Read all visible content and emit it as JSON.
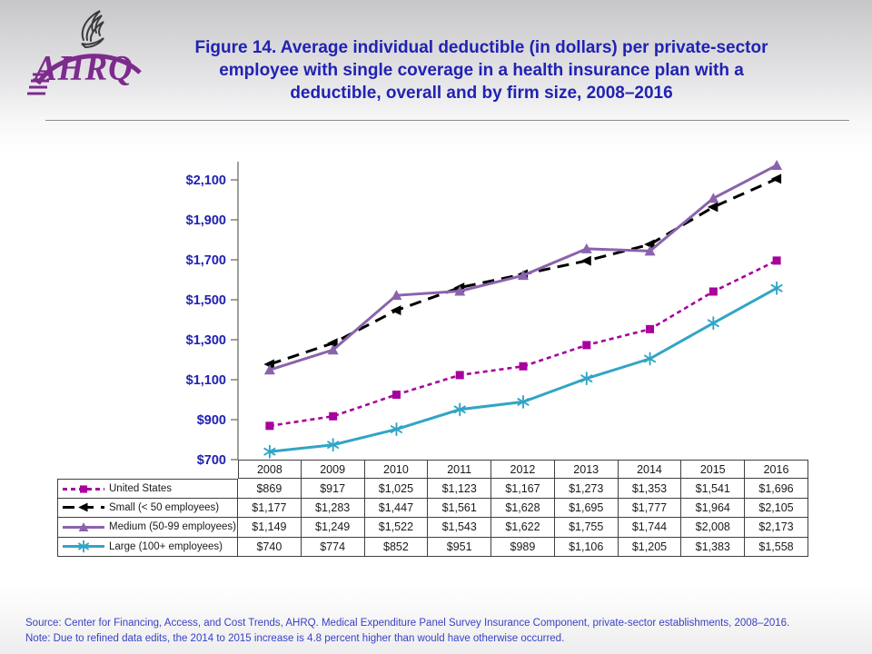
{
  "header": {
    "logo_text": "AHRQ",
    "logo_color": "#7d2b8d",
    "title_line1": "Figure 14. Average individual deductible (in dollars) per private-sector",
    "title_line2": "employee with single coverage in a health insurance plan with a",
    "title_line3": "deductible, overall and by firm size, 2008–2016",
    "title_color": "#2122b2"
  },
  "chart_data": {
    "type": "line",
    "categories": [
      "2008",
      "2009",
      "2010",
      "2011",
      "2012",
      "2013",
      "2014",
      "2015",
      "2016"
    ],
    "series": [
      {
        "name": "United States",
        "values": [
          869,
          917,
          1025,
          1123,
          1167,
          1273,
          1353,
          1541,
          1696
        ],
        "color": "#a7009d",
        "dash": "5 4",
        "width": 2.6,
        "marker": "square"
      },
      {
        "name": "Small (< 50 employees)",
        "values": [
          1177,
          1283,
          1447,
          1561,
          1628,
          1695,
          1777,
          1964,
          2105
        ],
        "color": "#000000",
        "dash": "13 8",
        "width": 3,
        "marker": "triangle-left"
      },
      {
        "name": "Medium (50-99 employees)",
        "values": [
          1149,
          1249,
          1522,
          1543,
          1622,
          1755,
          1744,
          2008,
          2173
        ],
        "color": "#8a63ad",
        "dash": "",
        "width": 3,
        "marker": "triangle-up"
      },
      {
        "name": "Large (100+ employees)",
        "values": [
          740,
          774,
          852,
          951,
          989,
          1106,
          1205,
          1383,
          1558
        ],
        "color": "#31a5c6",
        "dash": "",
        "width": 3,
        "marker": "asterisk"
      }
    ],
    "yticks": [
      2100,
      1900,
      1700,
      1500,
      1300,
      1100,
      900,
      700
    ],
    "ylim": [
      700,
      2100
    ],
    "xlabel": "",
    "ylabel": "",
    "grid": false,
    "legend_position": "table-left",
    "axis_color": "#6e6e6e",
    "tick_label_color": "#2021b0"
  },
  "footer": {
    "source": "Source: Center for Financing, Access, and Cost Trends, AHRQ.  Medical Expenditure Panel Survey  Insurance Component, private-sector establishments, 2008–2016.",
    "note": "Note: Due to refined data edits, the 2014 to 2015 increase is 4.8 percent higher than would have otherwise occurred.",
    "text_color": "#3a41c4"
  }
}
